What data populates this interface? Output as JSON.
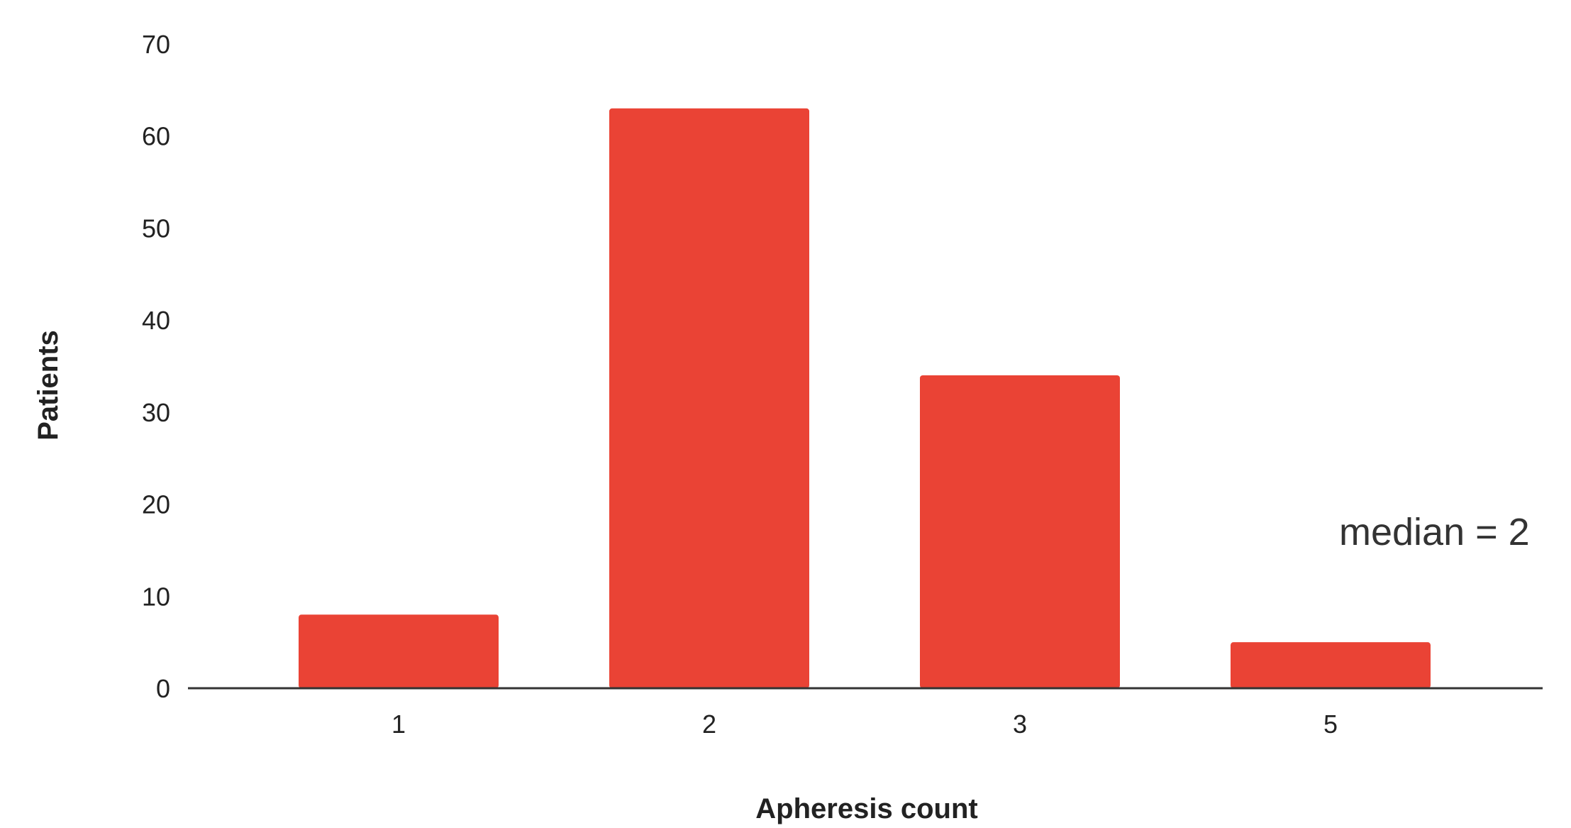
{
  "chart_data": {
    "type": "bar",
    "categories": [
      "1",
      "2",
      "3",
      "5"
    ],
    "values": [
      8,
      63,
      34,
      5
    ],
    "title": "",
    "xlabel": "Apheresis count",
    "ylabel": "Patients",
    "ylim": [
      0,
      70
    ],
    "yticks": [
      "0",
      "10",
      "20",
      "30",
      "40",
      "50",
      "60",
      "70"
    ],
    "grid": false,
    "legend": "none",
    "annotation": "median = 2",
    "bar_color": "#ea4335",
    "axis_color": "#333333"
  }
}
